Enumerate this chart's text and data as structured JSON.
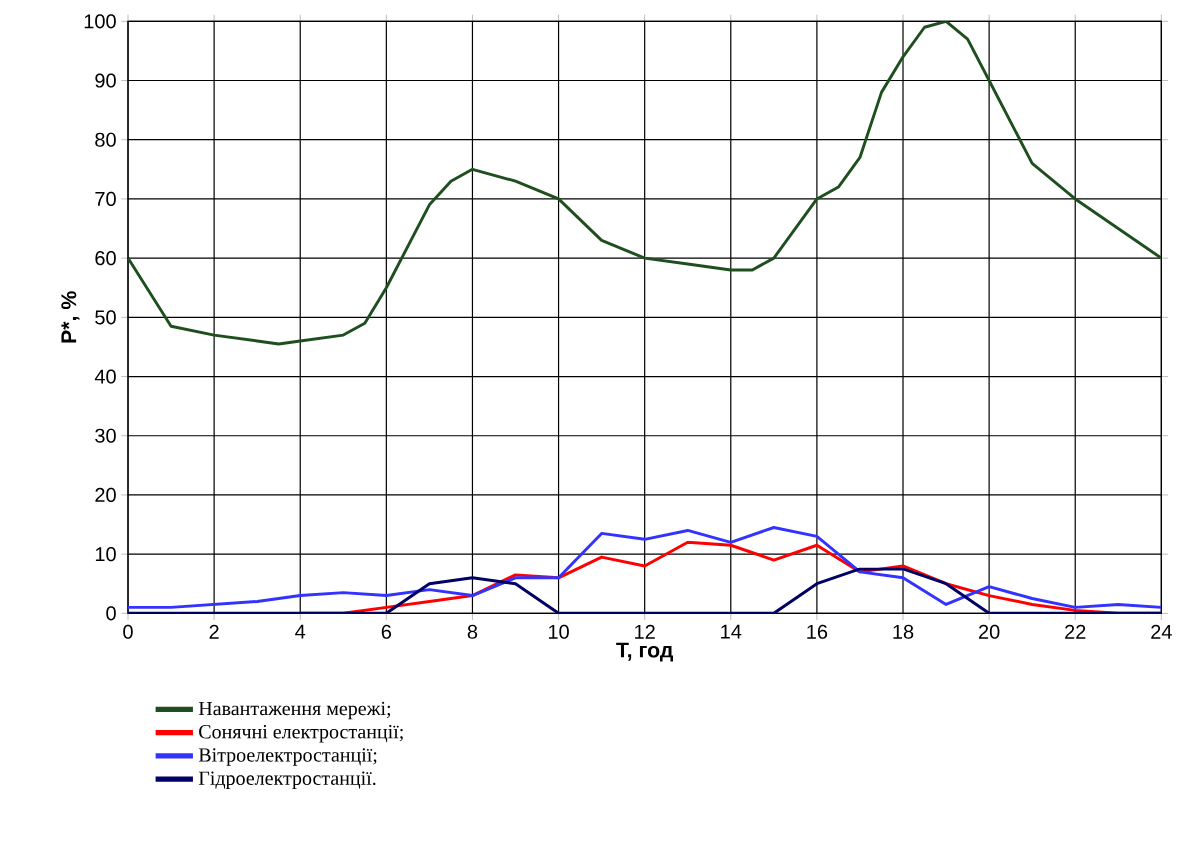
{
  "chart_data": {
    "type": "line",
    "xlabel": "T, год",
    "ylabel": "P*, %",
    "xlim": [
      0,
      24
    ],
    "xticks": [
      0,
      2,
      4,
      6,
      8,
      10,
      12,
      14,
      16,
      18,
      20,
      22,
      24
    ],
    "ylim": [
      0,
      100
    ],
    "yticks": [
      0,
      10,
      20,
      30,
      40,
      50,
      60,
      70,
      80,
      90,
      100
    ],
    "grid": true,
    "legend": "bottom",
    "marker": "none",
    "line_style": "solid",
    "x": [
      0,
      1,
      2,
      3,
      4,
      5,
      6,
      7,
      8,
      9,
      10,
      11,
      12,
      13,
      14,
      15,
      16,
      17,
      18,
      19,
      20,
      21,
      22,
      23,
      24
    ],
    "series": [
      {
        "name": "Навантаження мережі;",
        "color": "#1f4f1f",
        "x": [
          0,
          1,
          2,
          3,
          3.5,
          4,
          5,
          5.5,
          6,
          7,
          7.5,
          8,
          9,
          10,
          11,
          12,
          13,
          14,
          14.5,
          15,
          16,
          16.5,
          17,
          17.5,
          18,
          18.5,
          19,
          19.5,
          20,
          21,
          21.5,
          22,
          23,
          24
        ],
        "values": [
          60,
          48.5,
          47,
          46,
          45.5,
          46,
          47,
          49,
          55,
          69,
          73,
          75,
          73,
          70,
          63,
          60,
          59,
          58,
          58,
          60,
          70,
          72,
          77,
          88,
          94,
          99,
          100,
          97,
          90,
          76,
          73,
          70,
          65,
          60
        ]
      },
      {
        "name": "Сонячні електростанції;",
        "color": "#ff0000",
        "values": [
          null,
          null,
          null,
          null,
          0,
          0,
          1,
          2,
          3,
          6.5,
          6,
          9.5,
          8,
          12,
          11.5,
          9,
          11.5,
          7,
          8,
          5,
          3,
          1.5,
          0.5,
          0,
          0
        ]
      },
      {
        "name": "Вітроелектростанції;",
        "color": "#3333ff",
        "values": [
          1,
          1,
          1.5,
          2,
          3,
          3.5,
          3,
          4,
          3,
          6,
          6,
          13.5,
          12.5,
          14,
          12,
          14.5,
          13,
          7,
          6,
          1.5,
          4.5,
          2.5,
          1,
          1.5,
          1
        ]
      },
      {
        "name": "Гідроелектростанції.",
        "color": "#000066",
        "values": [
          0,
          0,
          0,
          0,
          0,
          0,
          0,
          5,
          6,
          5,
          0,
          0,
          0,
          0,
          0,
          0,
          5,
          7.5,
          7.5,
          5,
          0,
          0,
          0,
          0,
          0
        ]
      }
    ]
  }
}
